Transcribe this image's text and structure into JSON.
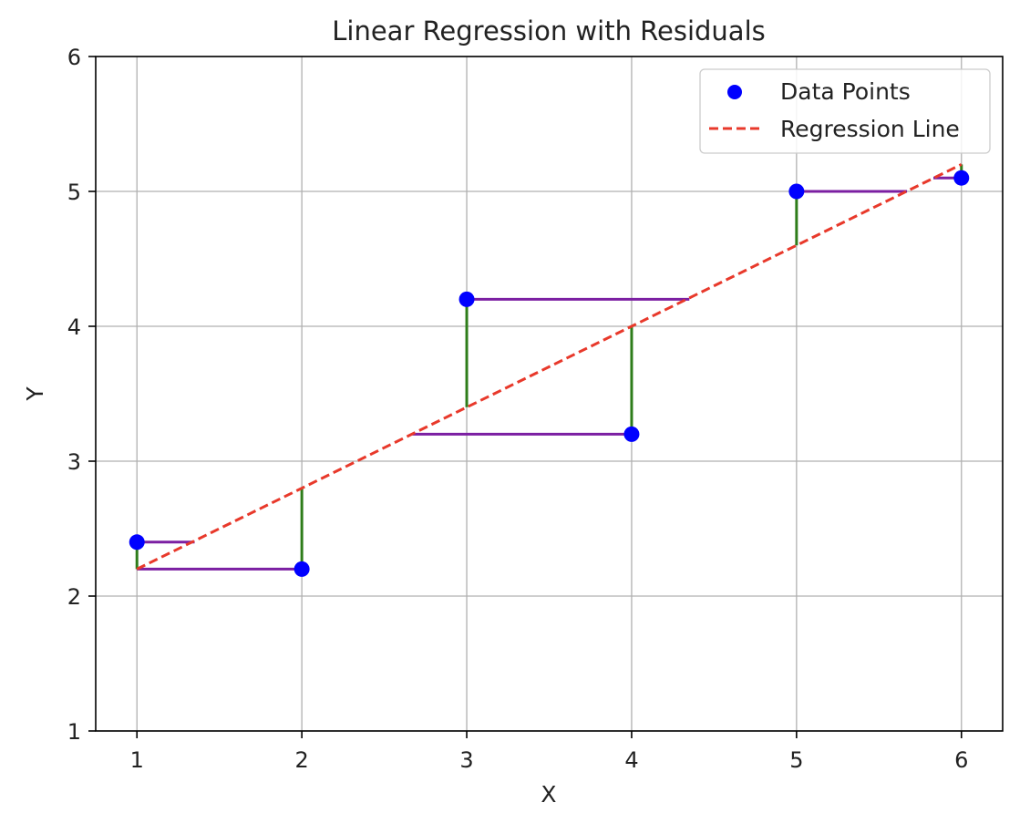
{
  "chart_data": {
    "type": "scatter",
    "title": "Linear Regression with Residuals",
    "xlabel": "X",
    "ylabel": "Y",
    "xlim": [
      0.75,
      6.25
    ],
    "ylim": [
      1,
      6
    ],
    "xticks": [
      1,
      2,
      3,
      4,
      5,
      6
    ],
    "yticks": [
      1,
      2,
      3,
      4,
      5,
      6
    ],
    "grid": true,
    "legend_position": "top-right",
    "series": [
      {
        "name": "Data Points",
        "kind": "scatter",
        "color": "#0000ff",
        "x": [
          1,
          2,
          3,
          4,
          5,
          6
        ],
        "y": [
          2.4,
          2.2,
          4.2,
          3.2,
          5.0,
          5.1
        ]
      },
      {
        "name": "Regression Line",
        "kind": "line",
        "style": "dashed",
        "color": "#e8392b",
        "x": [
          1,
          6
        ],
        "y": [
          2.2,
          5.2
        ]
      }
    ],
    "vertical_residuals": {
      "color": "#2e7d1a",
      "segments": [
        {
          "x": 1,
          "y_from": 2.4,
          "y_to": 2.2
        },
        {
          "x": 2,
          "y_from": 2.2,
          "y_to": 2.8
        },
        {
          "x": 3,
          "y_from": 4.2,
          "y_to": 3.4
        },
        {
          "x": 4,
          "y_from": 3.2,
          "y_to": 4.0
        },
        {
          "x": 5,
          "y_from": 5.0,
          "y_to": 4.6
        },
        {
          "x": 6,
          "y_from": 5.1,
          "y_to": 5.2
        }
      ]
    },
    "horizontal_residuals": {
      "color": "#7b1fa2",
      "segments": [
        {
          "y": 2.4,
          "x_from": 1,
          "x_to": 1.35
        },
        {
          "y": 2.2,
          "x_from": 1,
          "x_to": 2
        },
        {
          "y": 4.2,
          "x_from": 3,
          "x_to": 4.35
        },
        {
          "y": 3.2,
          "x_from": 2.67,
          "x_to": 4
        },
        {
          "y": 5.0,
          "x_from": 5,
          "x_to": 5.67
        },
        {
          "y": 5.1,
          "x_from": 5.83,
          "x_to": 6
        }
      ]
    }
  }
}
